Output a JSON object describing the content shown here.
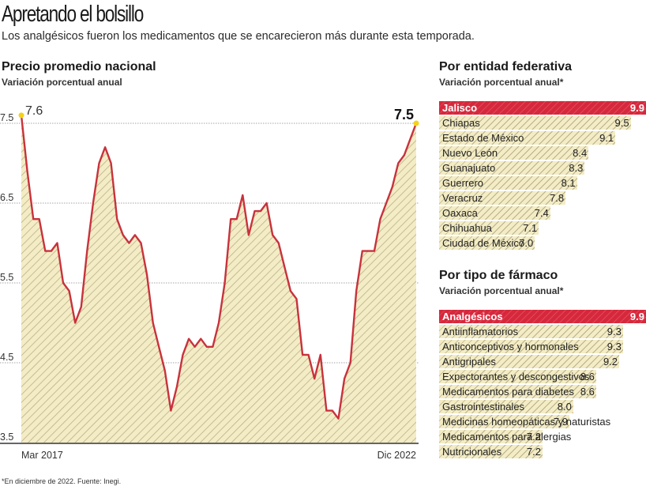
{
  "header": {
    "title": "Apretando el bolsillo",
    "subtitle": "Los analgésicos fueron los medicamentos que se encarecieron más durante esta temporada."
  },
  "colors": {
    "line": "#c8323c",
    "fill": "#f3ecc4",
    "hatch": "#b9b08c",
    "highlight": "#d6283c",
    "endpoint": "#f2d21a",
    "grid": "#b8b8b8"
  },
  "chart_data": [
    {
      "type": "area",
      "title": "Precio promedio nacional",
      "subtitle": "Variación porcentual anual",
      "xlabel": "",
      "ylabel": "",
      "x_start_label": "Mar 2017",
      "x_end_label": "Dic 2022",
      "ylim": [
        3.5,
        7.6
      ],
      "yticks": [
        3.5,
        4.5,
        5.5,
        6.5,
        7.5
      ],
      "ytick_labels": [
        "3.5",
        "4.5",
        "5.5",
        "6.5",
        "7.5"
      ],
      "grid": true,
      "annotations": [
        {
          "label": "7.6",
          "position": "start"
        },
        {
          "label": "7.5",
          "position": "end"
        }
      ],
      "values": [
        7.6,
        6.9,
        6.3,
        6.3,
        5.9,
        5.9,
        6.0,
        5.5,
        5.4,
        5.0,
        5.2,
        5.9,
        6.5,
        7.0,
        7.2,
        7.0,
        6.3,
        6.1,
        6.0,
        6.1,
        6.0,
        5.6,
        5.0,
        4.7,
        4.4,
        3.9,
        4.2,
        4.6,
        4.8,
        4.7,
        4.8,
        4.7,
        4.7,
        5.0,
        5.5,
        6.3,
        6.3,
        6.6,
        6.1,
        6.4,
        6.4,
        6.5,
        6.1,
        6.0,
        5.7,
        5.4,
        5.3,
        4.6,
        4.6,
        4.3,
        4.6,
        3.9,
        3.9,
        3.8,
        4.3,
        4.5,
        5.4,
        5.9,
        5.9,
        5.9,
        6.3,
        6.5,
        6.7,
        7.0,
        7.1,
        7.3,
        7.5
      ]
    },
    {
      "type": "bar",
      "title": "Por entidad federativa",
      "subtitle": "Variación porcentual anual*",
      "categories": [
        "Jalisco",
        "Chiapas",
        "Estado de México",
        "Nuevo León",
        "Guanajuato",
        "Guerrero",
        "Veracruz",
        "Oaxaca",
        "Chihuahua",
        "Ciudad de México"
      ],
      "values": [
        9.9,
        9.5,
        9.1,
        8.4,
        8.3,
        8.1,
        7.8,
        7.4,
        7.1,
        7.0
      ],
      "value_labels": [
        "9.9",
        "9.5",
        "9.1",
        "8.4",
        "8.3",
        "8.1",
        "7.8",
        "7.4",
        "7.1",
        "7.0"
      ],
      "highlight_index": 0,
      "orientation": "horizontal"
    },
    {
      "type": "bar",
      "title": "Por tipo de fármaco",
      "subtitle": "Variación porcentual anual*",
      "categories": [
        "Analgésicos",
        "Antiinflamatorios",
        "Anticonceptivos y hormonales",
        "Antigripales",
        "Expectorantes y descongestivos",
        "Medicamentos para diabetes",
        "Gastrointestinales",
        "Medicinas homeopáticas y naturistas",
        "Medicamentos para alergias",
        "Nutricionales"
      ],
      "values": [
        9.9,
        9.3,
        9.3,
        9.2,
        8.6,
        8.6,
        8.0,
        7.9,
        7.2,
        7.2
      ],
      "value_labels": [
        "9.9",
        "9.3",
        "9.3",
        "9.2",
        "8.6",
        "8.6",
        "8.0",
        "7.9",
        "7.2",
        "7.2"
      ],
      "highlight_index": 0,
      "orientation": "horizontal"
    }
  ],
  "footnote": "*En diciembre de 2022. Fuente: Inegi."
}
